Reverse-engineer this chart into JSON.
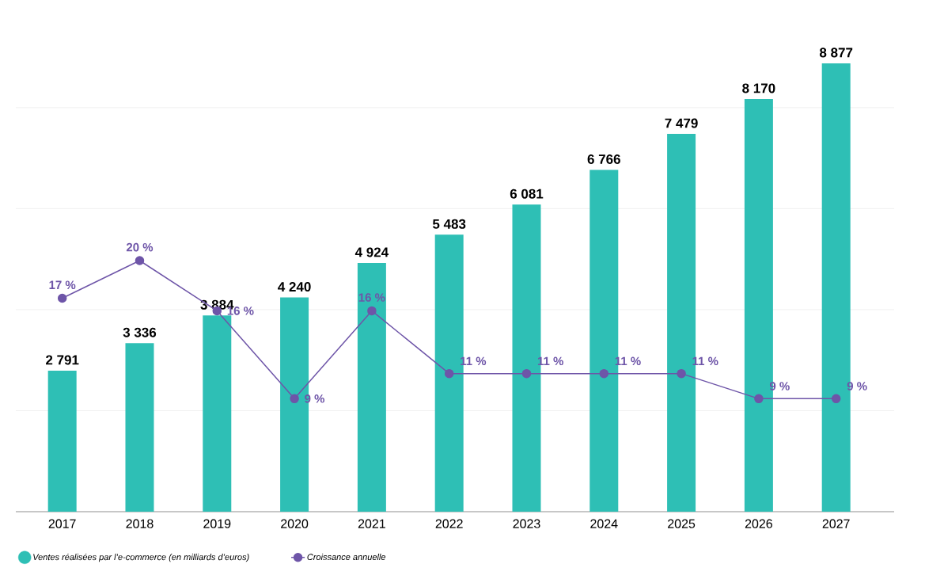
{
  "chart_data": {
    "type": "bar",
    "categories": [
      "2017",
      "2018",
      "2019",
      "2020",
      "2021",
      "2022",
      "2023",
      "2024",
      "2025",
      "2026",
      "2027"
    ],
    "series": [
      {
        "name": "Ventes réalisées par l’e-commerce (en milliards d’euros)",
        "color": "#2ebfb5",
        "values": [
          2791,
          3336,
          3884,
          4240,
          4924,
          5483,
          6081,
          6766,
          7479,
          8170,
          8877
        ],
        "value_labels": [
          "2 791",
          "3 336",
          "3 884",
          "4 240",
          "4 924",
          "5 483",
          "6 081",
          "6 766",
          "7 479",
          "8 170",
          "8 877"
        ]
      },
      {
        "name": "Croissance annuelle",
        "type": "line",
        "axis": "y2",
        "marker": "circle",
        "color": "#6e55a8",
        "values": [
          17,
          20,
          16,
          9,
          16,
          11,
          11,
          11,
          11,
          9,
          9
        ],
        "value_labels": [
          "17 %",
          "20 %",
          "16 %",
          "9 %",
          "16 %",
          "11 %",
          "11 %",
          "11 %",
          "11 %",
          "9 %",
          "9 %"
        ]
      }
    ],
    "grid": "y",
    "legend": "bottom left"
  }
}
